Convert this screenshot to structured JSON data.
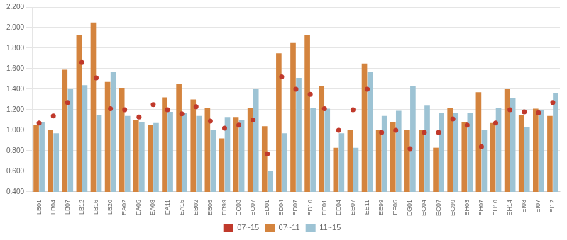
{
  "chart_data": {
    "type": "bar",
    "categories": [
      "LB01",
      "LB04",
      "LB07",
      "LB12",
      "LB16",
      "LB20",
      "EA02",
      "EA05",
      "EA08",
      "EA11",
      "EA15",
      "EB02",
      "EB05",
      "EB99",
      "EC03",
      "EC07",
      "ED01",
      "ED04",
      "ED07",
      "ED10",
      "EE01",
      "EE04",
      "EE07",
      "EE11",
      "EE99",
      "EF05",
      "EG01",
      "EG04",
      "EG07",
      "EG99",
      "EH03",
      "EH07",
      "EH10",
      "EH14",
      "EI03",
      "EI07",
      "EI12"
    ],
    "series": [
      {
        "name": "07~11",
        "type": "bar",
        "color": "#D4843E",
        "values": [
          1.05,
          1.0,
          1.59,
          1.93,
          2.05,
          1.47,
          1.41,
          1.1,
          1.05,
          1.32,
          1.45,
          1.3,
          1.22,
          0.92,
          1.13,
          1.22,
          1.04,
          1.75,
          1.85,
          1.93,
          1.43,
          0.83,
          1.0,
          1.65,
          1.0,
          1.08,
          1.0,
          1.0,
          0.83,
          1.22,
          1.08,
          1.37,
          1.07,
          1.4,
          1.15,
          1.21,
          1.14
        ]
      },
      {
        "name": "11~15",
        "type": "bar",
        "color": "#9DC3D4",
        "values": [
          1.08,
          0.97,
          1.4,
          1.44,
          1.15,
          1.57,
          1.14,
          1.08,
          1.07,
          1.18,
          1.17,
          1.14,
          1.0,
          1.13,
          1.1,
          1.4,
          0.6,
          0.97,
          1.51,
          1.22,
          1.21,
          0.97,
          0.83,
          1.57,
          1.14,
          1.19,
          1.43,
          1.24,
          1.17,
          1.17,
          1.17,
          1.0,
          1.22,
          1.31,
          1.03,
          1.2,
          1.36
        ]
      },
      {
        "name": "07~15",
        "type": "scatter",
        "color": "#C0392B",
        "marker": "circle",
        "values": [
          1.07,
          1.14,
          1.27,
          1.66,
          1.51,
          1.21,
          1.2,
          1.13,
          1.25,
          1.2,
          1.16,
          1.23,
          1.09,
          1.02,
          1.05,
          1.1,
          0.77,
          1.52,
          1.4,
          1.35,
          1.21,
          1.0,
          1.2,
          1.4,
          0.98,
          1.0,
          0.82,
          0.98,
          0.98,
          1.11,
          1.05,
          0.84,
          1.07,
          1.2,
          1.18,
          1.17,
          1.27
        ]
      }
    ],
    "ylim": [
      0.4,
      2.2
    ],
    "yticks": [
      {
        "value": 0.4,
        "label": "0.400"
      },
      {
        "value": 0.6,
        "label": "0.600"
      },
      {
        "value": 0.8,
        "label": "0.800"
      },
      {
        "value": 1.0,
        "label": "1.000"
      },
      {
        "value": 1.2,
        "label": "1.200"
      },
      {
        "value": 1.4,
        "label": "1.400"
      },
      {
        "value": 1.6,
        "label": "1.600"
      },
      {
        "value": 1.8,
        "label": "1.800"
      },
      {
        "value": 2.0,
        "label": "2.000"
      },
      {
        "value": 2.2,
        "label": "2.200"
      }
    ],
    "grid": true,
    "legend": "bottom"
  }
}
